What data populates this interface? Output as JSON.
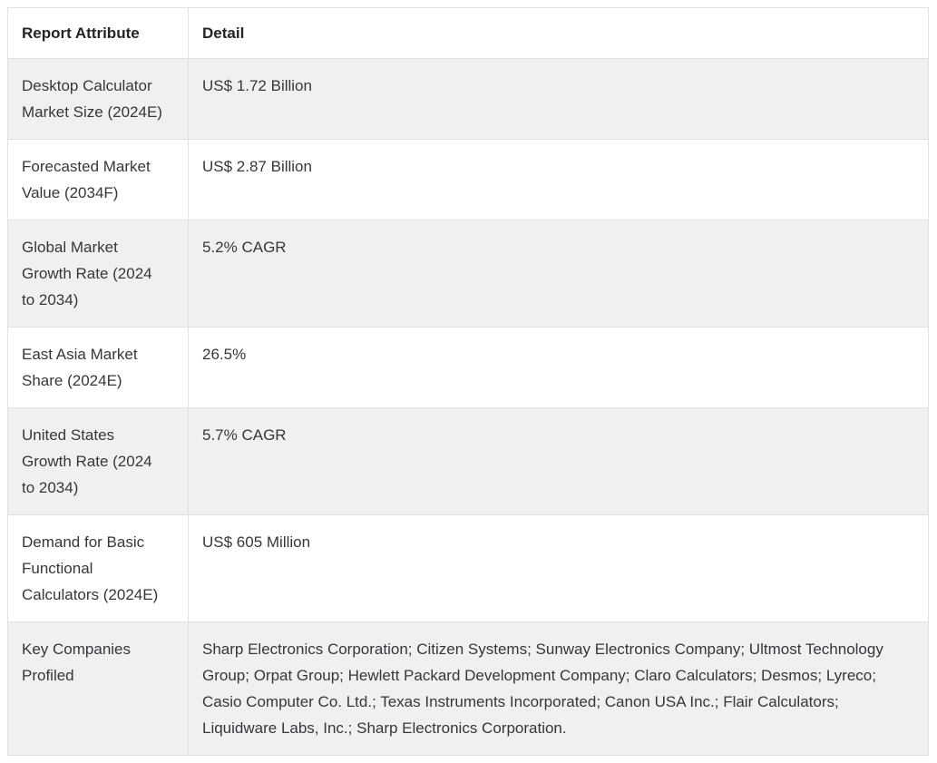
{
  "table": {
    "headers": {
      "attribute": "Report Attribute",
      "detail": "Detail"
    },
    "rows": [
      {
        "attribute": "Desktop Calculator Market Size (2024E)",
        "detail": "US$ 1.72 Billion"
      },
      {
        "attribute": "Forecasted Market Value (2034F)",
        "detail": "US$ 2.87 Billion"
      },
      {
        "attribute": "Global Market Growth Rate (2024 to 2034)",
        "detail": "5.2% CAGR"
      },
      {
        "attribute": "East Asia Market Share (2024E)",
        "detail": "26.5%"
      },
      {
        "attribute": "United States Growth Rate (2024 to 2034)",
        "detail": "5.7% CAGR"
      },
      {
        "attribute": "Demand for Basic Functional Calculators (2024E)",
        "detail": "US$ 605 Million"
      },
      {
        "attribute": "Key Companies Profiled",
        "detail": "Sharp Electronics Corporation; Citizen Systems; Sunway Electronics Company; Ultmost Technology Group; Orpat Group; Hewlett Packard Development Company; Claro Calculators; Desmos; Lyreco; Casio Computer Co. Ltd.; Texas Instruments Incorporated; Canon USA Inc.; Flair Calculators; Liquidware Labs, Inc.; Sharp Electronics Corporation."
      }
    ],
    "colors": {
      "row_alt_background": "#f0f0f1",
      "border": "#dee2e6",
      "header_text": "#212529",
      "cell_text": "#33383d"
    }
  }
}
